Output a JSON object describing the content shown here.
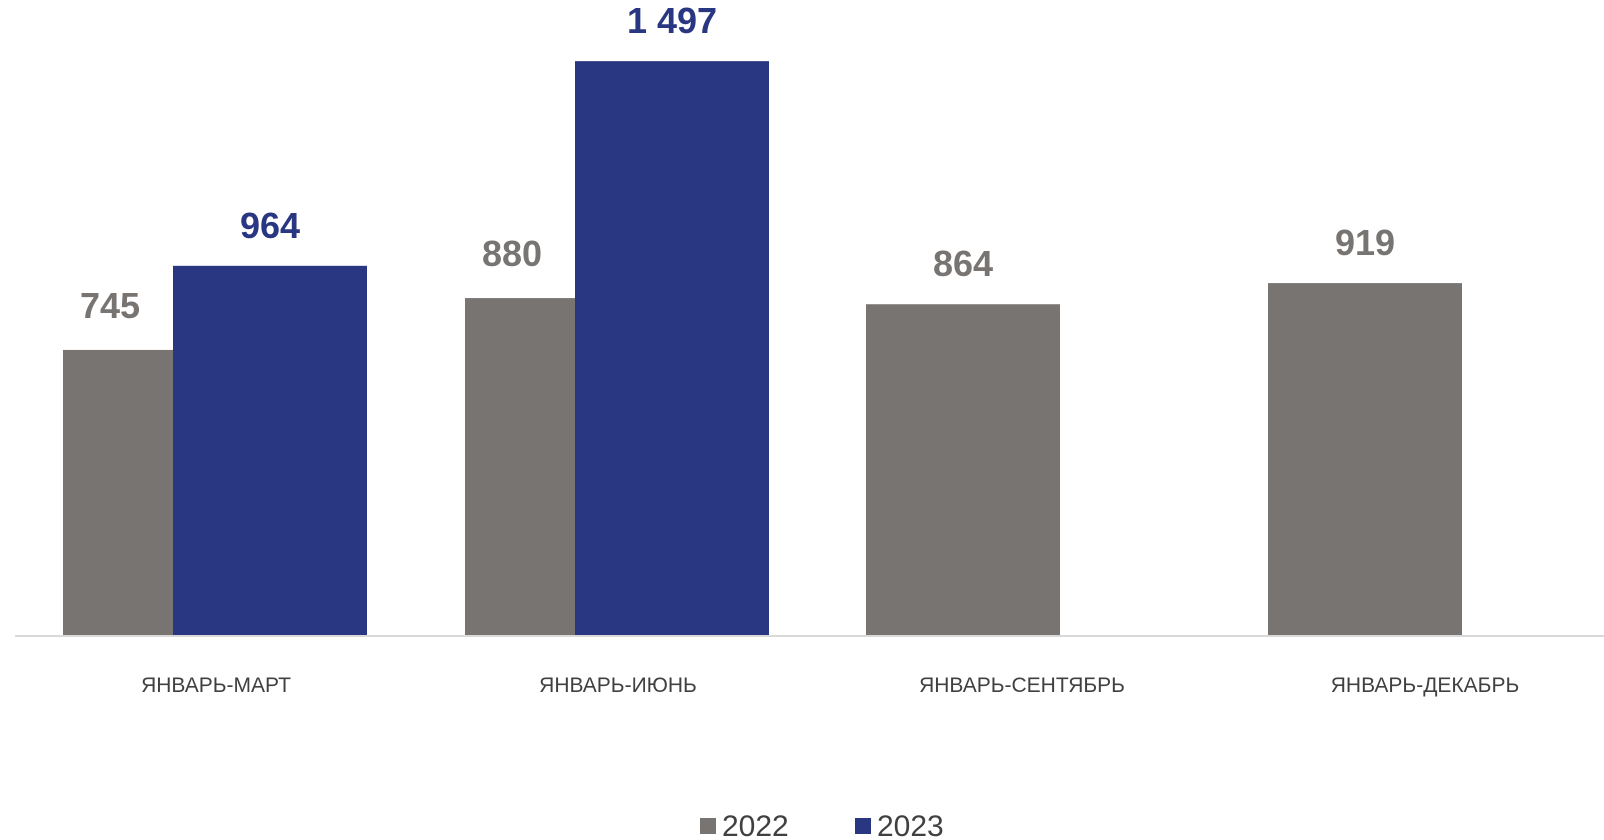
{
  "chart_data": {
    "type": "bar",
    "categories": [
      "ЯНВАРЬ-МАРТ",
      "ЯНВАРЬ-ИЮНЬ",
      "ЯНВАРЬ-СЕНТЯБРЬ",
      "ЯНВАРЬ-ДЕКАБРЬ"
    ],
    "series": [
      {
        "name": "2022",
        "values": [
          745,
          880,
          864,
          919
        ],
        "labels": [
          "745",
          "880",
          "864",
          "919"
        ],
        "color": "#777472"
      },
      {
        "name": "2023",
        "values": [
          964,
          1497,
          null,
          null
        ],
        "labels": [
          "964",
          "1 497",
          "",
          ""
        ],
        "color": "#293681"
      }
    ],
    "title": "",
    "xlabel": "",
    "ylabel": "",
    "ylim": [
      0,
      1500
    ],
    "grid": false,
    "legend_position": "bottom"
  }
}
